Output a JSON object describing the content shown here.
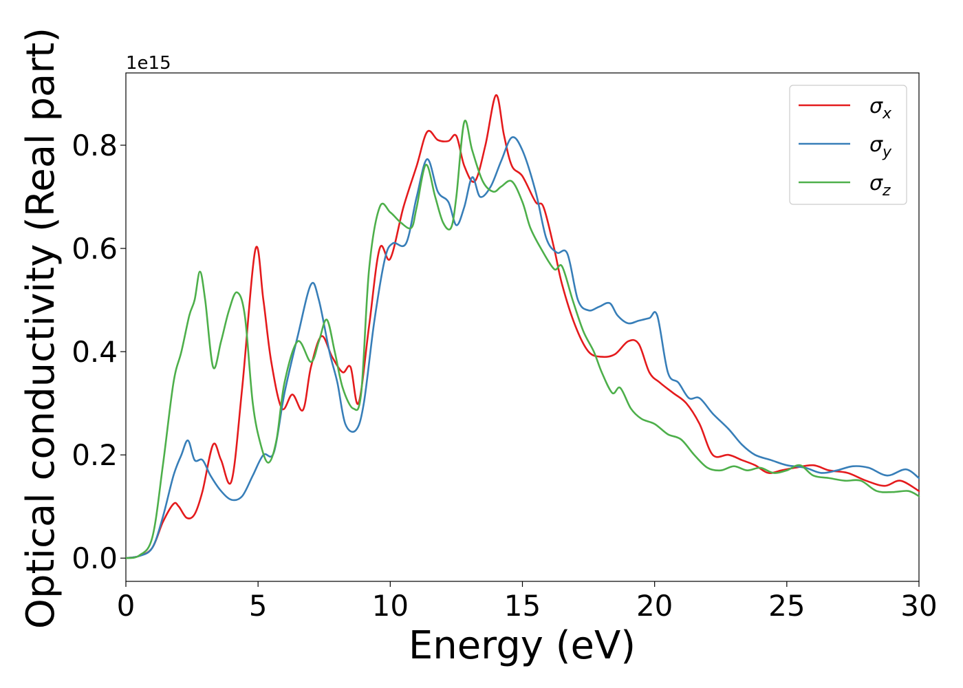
{
  "chart_data": {
    "type": "line",
    "title": "",
    "xlabel": "Energy (eV)",
    "ylabel": "Optical conductivity (Real part)",
    "y_offset_label": "1e15",
    "xlim": [
      0,
      30
    ],
    "ylim": [
      -0.045,
      0.94
    ],
    "xticks": [
      0,
      5,
      10,
      15,
      20,
      25,
      30
    ],
    "yticks": [
      0.0,
      0.2,
      0.4,
      0.6,
      0.8
    ],
    "ytick_labels": [
      "0.0",
      "0.2",
      "0.4",
      "0.6",
      "0.8"
    ],
    "grid": false,
    "legend_position": "top-right",
    "series": [
      {
        "name": "σ",
        "subscript": "x",
        "color": "#e41a1c",
        "points": [
          [
            0,
            0
          ],
          [
            0.5,
            0.004
          ],
          [
            1.0,
            0.02
          ],
          [
            1.4,
            0.07
          ],
          [
            1.8,
            0.105
          ],
          [
            2.0,
            0.1
          ],
          [
            2.3,
            0.078
          ],
          [
            2.6,
            0.085
          ],
          [
            2.9,
            0.13
          ],
          [
            3.3,
            0.22
          ],
          [
            3.6,
            0.19
          ],
          [
            4.0,
            0.15
          ],
          [
            4.4,
            0.33
          ],
          [
            4.9,
            0.598
          ],
          [
            5.2,
            0.5
          ],
          [
            5.5,
            0.38
          ],
          [
            5.9,
            0.29
          ],
          [
            6.3,
            0.317
          ],
          [
            6.7,
            0.287
          ],
          [
            7.0,
            0.37
          ],
          [
            7.4,
            0.43
          ],
          [
            7.8,
            0.39
          ],
          [
            8.2,
            0.36
          ],
          [
            8.5,
            0.37
          ],
          [
            8.8,
            0.3
          ],
          [
            9.2,
            0.45
          ],
          [
            9.6,
            0.6
          ],
          [
            10.0,
            0.58
          ],
          [
            10.5,
            0.68
          ],
          [
            11.0,
            0.76
          ],
          [
            11.4,
            0.826
          ],
          [
            11.8,
            0.81
          ],
          [
            12.2,
            0.808
          ],
          [
            12.5,
            0.818
          ],
          [
            12.8,
            0.76
          ],
          [
            13.2,
            0.73
          ],
          [
            13.6,
            0.8
          ],
          [
            14.0,
            0.897
          ],
          [
            14.3,
            0.82
          ],
          [
            14.6,
            0.76
          ],
          [
            15.0,
            0.74
          ],
          [
            15.5,
            0.69
          ],
          [
            15.8,
            0.68
          ],
          [
            16.2,
            0.6
          ],
          [
            16.5,
            0.53
          ],
          [
            17.0,
            0.45
          ],
          [
            17.5,
            0.4
          ],
          [
            18.0,
            0.39
          ],
          [
            18.5,
            0.395
          ],
          [
            19.0,
            0.42
          ],
          [
            19.4,
            0.415
          ],
          [
            19.8,
            0.36
          ],
          [
            20.2,
            0.34
          ],
          [
            20.7,
            0.32
          ],
          [
            21.2,
            0.3
          ],
          [
            21.7,
            0.26
          ],
          [
            22.2,
            0.2
          ],
          [
            22.8,
            0.2
          ],
          [
            23.3,
            0.19
          ],
          [
            23.8,
            0.18
          ],
          [
            24.3,
            0.165
          ],
          [
            24.8,
            0.17
          ],
          [
            25.3,
            0.175
          ],
          [
            26.0,
            0.18
          ],
          [
            26.6,
            0.17
          ],
          [
            27.3,
            0.165
          ],
          [
            28.0,
            0.15
          ],
          [
            28.7,
            0.14
          ],
          [
            29.3,
            0.15
          ],
          [
            30.0,
            0.13
          ]
        ]
      },
      {
        "name": "σ",
        "subscript": "y",
        "color": "#377eb8",
        "points": [
          [
            0,
            0
          ],
          [
            0.5,
            0.004
          ],
          [
            1.0,
            0.02
          ],
          [
            1.4,
            0.08
          ],
          [
            1.8,
            0.16
          ],
          [
            2.1,
            0.2
          ],
          [
            2.35,
            0.228
          ],
          [
            2.6,
            0.19
          ],
          [
            2.9,
            0.19
          ],
          [
            3.2,
            0.16
          ],
          [
            3.6,
            0.13
          ],
          [
            4.0,
            0.113
          ],
          [
            4.4,
            0.12
          ],
          [
            4.8,
            0.16
          ],
          [
            5.2,
            0.2
          ],
          [
            5.6,
            0.205
          ],
          [
            6.0,
            0.32
          ],
          [
            6.5,
            0.43
          ],
          [
            7.0,
            0.53
          ],
          [
            7.3,
            0.5
          ],
          [
            7.7,
            0.4
          ],
          [
            8.0,
            0.34
          ],
          [
            8.3,
            0.26
          ],
          [
            8.7,
            0.248
          ],
          [
            9.0,
            0.3
          ],
          [
            9.4,
            0.46
          ],
          [
            9.8,
            0.58
          ],
          [
            10.1,
            0.61
          ],
          [
            10.6,
            0.61
          ],
          [
            11.0,
            0.7
          ],
          [
            11.4,
            0.773
          ],
          [
            11.8,
            0.71
          ],
          [
            12.2,
            0.69
          ],
          [
            12.5,
            0.645
          ],
          [
            12.8,
            0.68
          ],
          [
            13.1,
            0.738
          ],
          [
            13.4,
            0.7
          ],
          [
            13.8,
            0.72
          ],
          [
            14.2,
            0.77
          ],
          [
            14.6,
            0.815
          ],
          [
            15.0,
            0.79
          ],
          [
            15.5,
            0.71
          ],
          [
            15.9,
            0.62
          ],
          [
            16.3,
            0.592
          ],
          [
            16.7,
            0.59
          ],
          [
            17.1,
            0.5
          ],
          [
            17.5,
            0.48
          ],
          [
            17.9,
            0.487
          ],
          [
            18.3,
            0.494
          ],
          [
            18.6,
            0.47
          ],
          [
            19.0,
            0.455
          ],
          [
            19.4,
            0.46
          ],
          [
            19.8,
            0.465
          ],
          [
            20.1,
            0.47
          ],
          [
            20.5,
            0.36
          ],
          [
            20.9,
            0.34
          ],
          [
            21.3,
            0.31
          ],
          [
            21.7,
            0.31
          ],
          [
            22.2,
            0.28
          ],
          [
            22.8,
            0.25
          ],
          [
            23.3,
            0.22
          ],
          [
            23.8,
            0.2
          ],
          [
            24.4,
            0.19
          ],
          [
            25.0,
            0.18
          ],
          [
            25.7,
            0.175
          ],
          [
            26.3,
            0.165
          ],
          [
            26.9,
            0.17
          ],
          [
            27.5,
            0.178
          ],
          [
            28.1,
            0.175
          ],
          [
            28.8,
            0.16
          ],
          [
            29.5,
            0.172
          ],
          [
            30.0,
            0.155
          ]
        ]
      },
      {
        "name": "σ",
        "subscript": "z",
        "color": "#4daf4a",
        "points": [
          [
            0,
            0
          ],
          [
            0.5,
            0.005
          ],
          [
            1.0,
            0.04
          ],
          [
            1.4,
            0.18
          ],
          [
            1.8,
            0.34
          ],
          [
            2.1,
            0.4
          ],
          [
            2.4,
            0.47
          ],
          [
            2.6,
            0.5
          ],
          [
            2.8,
            0.555
          ],
          [
            3.0,
            0.5
          ],
          [
            3.3,
            0.37
          ],
          [
            3.6,
            0.42
          ],
          [
            3.9,
            0.48
          ],
          [
            4.2,
            0.515
          ],
          [
            4.5,
            0.47
          ],
          [
            4.8,
            0.3
          ],
          [
            5.1,
            0.22
          ],
          [
            5.4,
            0.185
          ],
          [
            5.7,
            0.23
          ],
          [
            6.0,
            0.34
          ],
          [
            6.5,
            0.42
          ],
          [
            7.0,
            0.38
          ],
          [
            7.3,
            0.42
          ],
          [
            7.6,
            0.462
          ],
          [
            7.9,
            0.4
          ],
          [
            8.2,
            0.33
          ],
          [
            8.6,
            0.29
          ],
          [
            8.9,
            0.32
          ],
          [
            9.2,
            0.56
          ],
          [
            9.6,
            0.68
          ],
          [
            10.0,
            0.67
          ],
          [
            10.4,
            0.65
          ],
          [
            10.8,
            0.64
          ],
          [
            11.0,
            0.68
          ],
          [
            11.35,
            0.762
          ],
          [
            11.7,
            0.7
          ],
          [
            12.0,
            0.65
          ],
          [
            12.3,
            0.64
          ],
          [
            12.5,
            0.7
          ],
          [
            12.8,
            0.845
          ],
          [
            13.1,
            0.79
          ],
          [
            13.5,
            0.73
          ],
          [
            13.9,
            0.71
          ],
          [
            14.2,
            0.72
          ],
          [
            14.6,
            0.73
          ],
          [
            15.0,
            0.69
          ],
          [
            15.3,
            0.64
          ],
          [
            15.7,
            0.6
          ],
          [
            16.2,
            0.56
          ],
          [
            16.5,
            0.565
          ],
          [
            16.9,
            0.5
          ],
          [
            17.3,
            0.44
          ],
          [
            17.7,
            0.4
          ],
          [
            18.0,
            0.36
          ],
          [
            18.4,
            0.32
          ],
          [
            18.7,
            0.33
          ],
          [
            19.1,
            0.29
          ],
          [
            19.5,
            0.27
          ],
          [
            20.0,
            0.26
          ],
          [
            20.5,
            0.24
          ],
          [
            21.0,
            0.23
          ],
          [
            21.5,
            0.2
          ],
          [
            22.0,
            0.175
          ],
          [
            22.5,
            0.17
          ],
          [
            23.0,
            0.178
          ],
          [
            23.5,
            0.17
          ],
          [
            24.0,
            0.175
          ],
          [
            24.5,
            0.165
          ],
          [
            25.0,
            0.17
          ],
          [
            25.5,
            0.18
          ],
          [
            26.0,
            0.16
          ],
          [
            26.6,
            0.155
          ],
          [
            27.2,
            0.15
          ],
          [
            27.8,
            0.15
          ],
          [
            28.4,
            0.13
          ],
          [
            29.0,
            0.128
          ],
          [
            29.6,
            0.13
          ],
          [
            30.0,
            0.12
          ]
        ]
      }
    ]
  }
}
